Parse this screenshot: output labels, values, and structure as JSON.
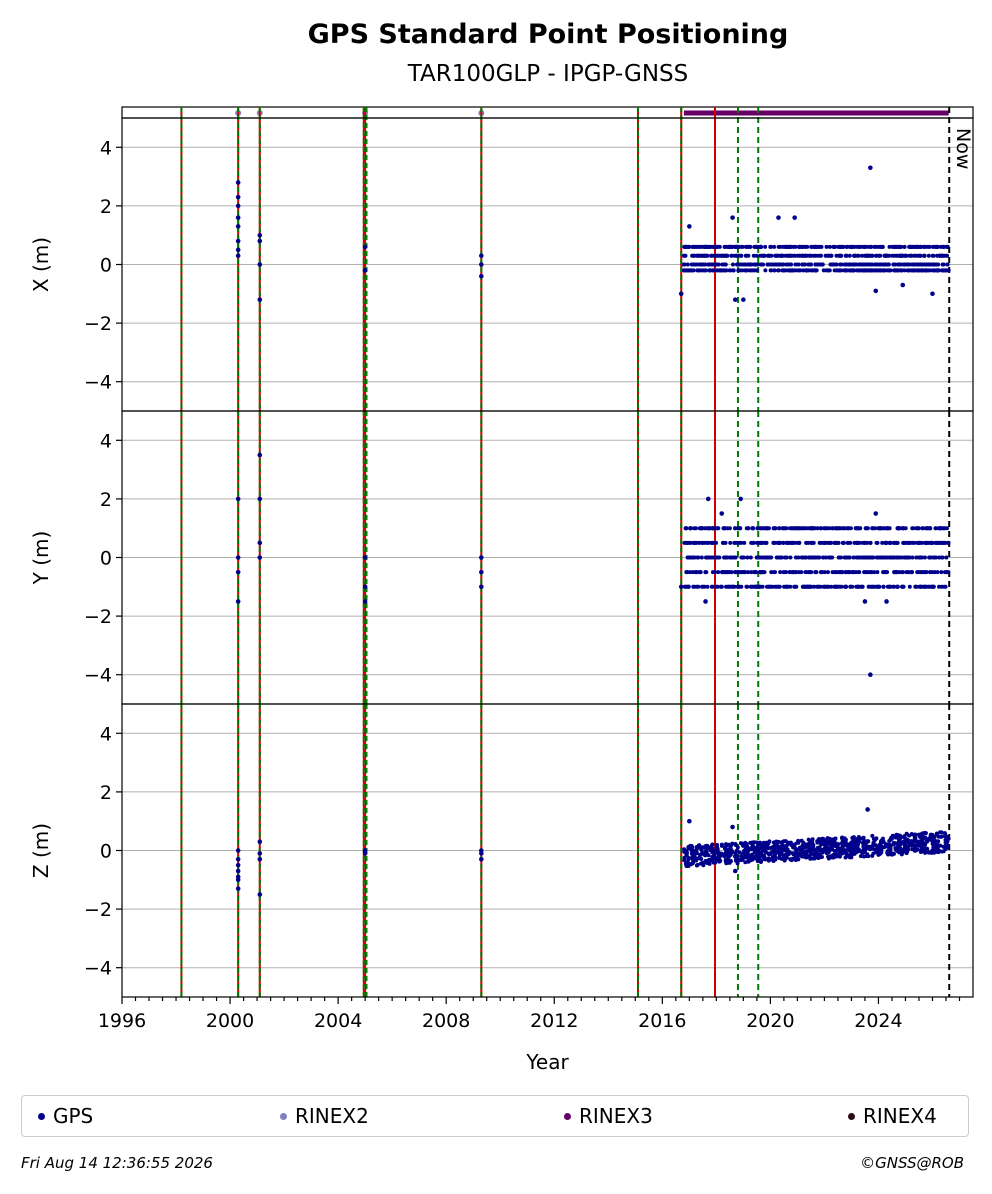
{
  "chart_data": {
    "type": "scatter",
    "title": "GPS Standard Point Positioning",
    "subtitle": "TAR100GLP - IPGP-GNSS",
    "xlabel": "Year",
    "xlim": [
      1996.0,
      2027.5
    ],
    "xticks": [
      1996,
      2000,
      2004,
      2008,
      2012,
      2016,
      2020,
      2024
    ],
    "yticks": [
      -4,
      -2,
      0,
      2,
      4
    ],
    "ylim": [
      -5,
      5
    ],
    "grid": true,
    "legend_position": "bottom",
    "now_label": "Now",
    "now_year": 2026.62,
    "panels": [
      {
        "ylabel": "X (m)",
        "sparse_points": [
          [
            2000.3,
            2.8
          ],
          [
            2000.3,
            2.3
          ],
          [
            2000.3,
            2.0
          ],
          [
            2000.3,
            1.6
          ],
          [
            2000.3,
            1.3
          ],
          [
            2000.3,
            0.8
          ],
          [
            2000.3,
            0.5
          ],
          [
            2000.3,
            0.3
          ],
          [
            2001.1,
            1.0
          ],
          [
            2001.1,
            0.8
          ],
          [
            2001.1,
            0.0
          ],
          [
            2001.1,
            -1.2
          ],
          [
            2005.0,
            0.6
          ],
          [
            2005.0,
            -0.2
          ],
          [
            2009.3,
            0.3
          ],
          [
            2009.3,
            0.0
          ],
          [
            2009.3,
            -0.4
          ],
          [
            2016.7,
            -1.0
          ],
          [
            2017.0,
            1.3
          ],
          [
            2018.6,
            1.6
          ],
          [
            2018.7,
            -1.2
          ],
          [
            2019.0,
            -1.2
          ],
          [
            2020.3,
            1.6
          ],
          [
            2020.9,
            1.6
          ],
          [
            2023.7,
            3.3
          ],
          [
            2023.9,
            -0.9
          ],
          [
            2024.9,
            -0.7
          ],
          [
            2026.0,
            -1.0
          ]
        ],
        "cluster": {
          "start": 2016.8,
          "end": 2026.6,
          "levels": [
            0.6,
            0.3,
            0.0,
            -0.2
          ]
        }
      },
      {
        "ylabel": "Y (m)",
        "sparse_points": [
          [
            2000.3,
            2.0
          ],
          [
            2000.3,
            0.0
          ],
          [
            2000.3,
            -0.5
          ],
          [
            2000.3,
            -1.5
          ],
          [
            2001.1,
            3.5
          ],
          [
            2001.1,
            2.0
          ],
          [
            2001.1,
            0.5
          ],
          [
            2001.1,
            0.0
          ],
          [
            2005.0,
            0.0
          ],
          [
            2005.0,
            -1.0
          ],
          [
            2005.0,
            -1.5
          ],
          [
            2009.3,
            0.0
          ],
          [
            2009.3,
            -0.5
          ],
          [
            2009.3,
            -1.0
          ],
          [
            2016.7,
            -1.0
          ],
          [
            2017.7,
            2.0
          ],
          [
            2018.2,
            1.5
          ],
          [
            2018.9,
            2.0
          ],
          [
            2017.6,
            -1.5
          ],
          [
            2023.7,
            -4.0
          ],
          [
            2023.9,
            1.5
          ],
          [
            2023.5,
            -1.5
          ],
          [
            2024.3,
            -1.5
          ]
        ],
        "cluster": {
          "start": 2016.8,
          "end": 2026.6,
          "levels": [
            1.0,
            0.5,
            0.0,
            -0.5,
            -1.0
          ]
        }
      },
      {
        "ylabel": "Z (m)",
        "sparse_points": [
          [
            2000.3,
            0.0
          ],
          [
            2000.3,
            -0.3
          ],
          [
            2000.3,
            -0.5
          ],
          [
            2000.3,
            -0.7
          ],
          [
            2000.3,
            -0.9
          ],
          [
            2000.3,
            -1.0
          ],
          [
            2000.3,
            -1.3
          ],
          [
            2001.1,
            0.3
          ],
          [
            2001.1,
            -0.1
          ],
          [
            2001.1,
            -0.3
          ],
          [
            2001.1,
            -1.5
          ],
          [
            2005.0,
            0.0
          ],
          [
            2005.0,
            -0.1
          ],
          [
            2009.3,
            0.0
          ],
          [
            2009.3,
            -0.1
          ],
          [
            2009.3,
            -0.3
          ],
          [
            2017.0,
            1.0
          ],
          [
            2018.6,
            0.8
          ],
          [
            2023.6,
            1.4
          ],
          [
            2018.7,
            -0.7
          ]
        ],
        "cluster": {
          "start": 2016.8,
          "end": 2026.6,
          "trend": [
            -0.2,
            0.3
          ],
          "spread": 0.35
        }
      }
    ],
    "event_lines_red": [
      1998.2,
      2000.3,
      2001.1,
      2004.95,
      2005.0,
      2009.3,
      2015.1,
      2016.7,
      2017.95
    ],
    "event_lines_green_solid": [
      1998.2,
      2000.3,
      2001.1,
      2004.95,
      2005.05,
      2009.3,
      2015.1,
      2016.7
    ],
    "event_lines_green_dashed": [
      2018.8,
      2019.55
    ],
    "rinex2_marks": [
      2000.3,
      2001.1,
      2005.0,
      2009.3
    ],
    "rinex3_range": [
      2016.8,
      2026.6
    ],
    "colors": {
      "gps": "#00008b",
      "rinex2": "#8080c0",
      "rinex3": "#660066",
      "rinex4": "#2a0a1a",
      "event_red": "#d00000",
      "event_green": "#007a00",
      "grid": "#b0b0b0"
    },
    "legend": [
      {
        "label": "GPS",
        "color": "#00008b"
      },
      {
        "label": "RINEX2",
        "color": "#8080c0"
      },
      {
        "label": "RINEX3",
        "color": "#660066"
      },
      {
        "label": "RINEX4",
        "color": "#2a0a1a"
      }
    ]
  },
  "footer": {
    "timestamp": "Fri Aug 14 12:36:55 2026",
    "credit": "©GNSS@ROB"
  }
}
